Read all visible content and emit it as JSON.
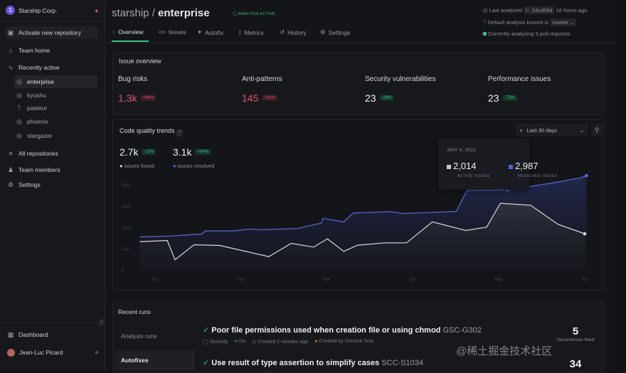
{
  "org": {
    "name": "Starship Corp.",
    "initial": "S"
  },
  "sidebar": {
    "activate": "Activate new repository",
    "team_home": "Team home",
    "recently_active": "Recently active",
    "repos": [
      "enterprise",
      "kyushu",
      "pasteur",
      "phoenix",
      "stargazer"
    ],
    "all_repos": "All repositories",
    "team_members": "Team members",
    "settings": "Settings",
    "dashboard": "Dashboard",
    "user": "Jean-Luc Picard"
  },
  "header": {
    "owner": "starship /",
    "repo": "enterprise",
    "status": "ANALYSIS ACTIVE",
    "last_analyzed": "Last analyzed",
    "commit": "24cd56d",
    "ago": "16 hours ago",
    "branch_text": "Default analysis branch is",
    "branch": "master",
    "analyzing": "Currently analyzing 3 pull-requests"
  },
  "tabs": [
    "Overview",
    "Issues",
    "Autofix",
    "Metrics",
    "History",
    "Settings"
  ],
  "overview": {
    "title": "Issue overview",
    "stats": [
      {
        "label": "Bug risks",
        "value": "1.3k",
        "delta": "+44%",
        "tone": "red"
      },
      {
        "label": "Anti-patterns",
        "value": "145",
        "delta": "+31%",
        "tone": "red"
      },
      {
        "label": "Security vulnerabilities",
        "value": "23",
        "delta": "-28%",
        "tone": "green"
      },
      {
        "label": "Performance issues",
        "value": "23",
        "delta": "-73%",
        "tone": "green"
      }
    ]
  },
  "trends": {
    "title": "Code quality trends",
    "help": "?",
    "range": "Last 30 days",
    "found": "2.7k",
    "found_delta": "-17%",
    "found_label": "issues found",
    "resolved": "3.1k",
    "resolved_delta": "+54%",
    "resolved_label": "issues resolved",
    "tooltip": {
      "date": "MAY 4, 2021",
      "active": "2,014",
      "active_label": "ACTIVE ISSUES",
      "resolved": "2,987",
      "resolved_label": "RESOLVED ISSUES"
    }
  },
  "chart_data": {
    "type": "area",
    "title": "Code quality trends",
    "x_labels": [
      "Jan",
      "Feb",
      "Mar",
      "Apr",
      "May",
      "Jun"
    ],
    "y_ticks": [
      0,
      500,
      1000,
      1500,
      2000
    ],
    "ylim": [
      0,
      2300
    ],
    "series": [
      {
        "name": "issues resolved",
        "color": "#5a6ad8",
        "points": [
          [
            -0.17,
            793
          ],
          [
            0.15,
            810
          ],
          [
            0.55,
            860
          ],
          [
            0.59,
            933
          ],
          [
            0.92,
            933
          ],
          [
            1.11,
            978
          ],
          [
            1.25,
            961
          ],
          [
            1.66,
            989
          ],
          [
            1.94,
            1117
          ],
          [
            1.96,
            1229
          ],
          [
            2.2,
            1145
          ],
          [
            2.31,
            1352
          ],
          [
            2.73,
            1385
          ],
          [
            2.82,
            1363
          ],
          [
            2.88,
            1341
          ],
          [
            3.17,
            1363
          ],
          [
            3.51,
            1391
          ],
          [
            3.63,
            1877
          ],
          [
            4.1,
            1894
          ],
          [
            4.6,
            2050
          ],
          [
            4.94,
            2173
          ],
          [
            5.02,
            2229
          ]
        ]
      },
      {
        "name": "issues found",
        "color": "#d8d9de",
        "points": [
          [
            -0.17,
            682
          ],
          [
            0.15,
            709
          ],
          [
            0.24,
            257
          ],
          [
            0.46,
            609
          ],
          [
            0.76,
            592
          ],
          [
            1.33,
            330
          ],
          [
            1.59,
            642
          ],
          [
            1.85,
            553
          ],
          [
            2.01,
            749
          ],
          [
            2.2,
            453
          ],
          [
            2.36,
            598
          ],
          [
            2.68,
            654
          ],
          [
            2.93,
            654
          ],
          [
            3.23,
            1145
          ],
          [
            3.62,
            944
          ],
          [
            3.86,
            1022
          ],
          [
            4.02,
            1581
          ],
          [
            4.37,
            1536
          ],
          [
            4.69,
            1089
          ],
          [
            5.0,
            866
          ]
        ]
      }
    ]
  },
  "runs": {
    "title": "Recent runs",
    "tabs": [
      "Analysis runs",
      "Autofixes"
    ],
    "items": [
      {
        "title": "Poor file permissions used when creation file or using chmod",
        "code": "GSC-G302",
        "category": "Security",
        "lang": "Go",
        "created": "Created 2 minutes ago",
        "author": "Created by Demora Sulu",
        "count": "5",
        "count_label": "Occurrences fixed"
      },
      {
        "title": "Use result of type assertion to simplify cases",
        "code": "SCC-S1034",
        "count": "34"
      }
    ]
  },
  "watermark": "@稀土掘金技术社区"
}
